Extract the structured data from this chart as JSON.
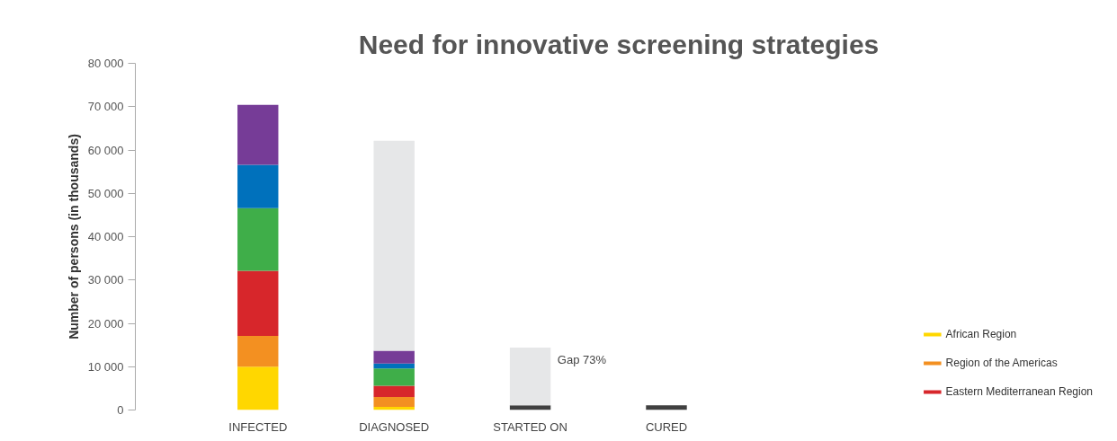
{
  "chart_data": {
    "type": "bar",
    "stacked": true,
    "title": "Need for innovative screening strategies",
    "ylabel": "Number of persons (in thousands)",
    "categories": [
      "INFECTED",
      "DIAGNOSED",
      "STARTED ON",
      "CURED"
    ],
    "series": [
      {
        "name": "African Region",
        "color": "#ffd700",
        "values": [
          10000,
          700,
          null,
          null
        ]
      },
      {
        "name": "Region of the Americas",
        "color": "#f39021",
        "values": [
          7100,
          2300,
          null,
          null
        ]
      },
      {
        "name": "Eastern Mediterranean Region",
        "color": "#d7262b",
        "values": [
          15000,
          2600,
          null,
          null
        ]
      },
      {
        "color": "#3fae49",
        "values": [
          14500,
          4000,
          null,
          null
        ]
      },
      {
        "color": "#0071bc",
        "values": [
          10000,
          1100,
          null,
          null
        ]
      },
      {
        "color": "#763c97",
        "values": [
          13800,
          3000,
          null,
          null
        ]
      },
      {
        "color": "#404040",
        "values": [
          null,
          null,
          1100,
          1100
        ]
      },
      {
        "color": "#e6e7e8",
        "values": [
          null,
          48400,
          13300,
          null
        ]
      }
    ],
    "ylim": [
      0,
      80000
    ],
    "yticks": [
      {
        "value": 0,
        "label": "0"
      },
      {
        "value": 10000,
        "label": "10 000"
      },
      {
        "value": 20000,
        "label": "20 000"
      },
      {
        "value": 30000,
        "label": "30 000"
      },
      {
        "value": 40000,
        "label": "40 000"
      },
      {
        "value": 50000,
        "label": "50 000"
      },
      {
        "value": 60000,
        "label": "60 000"
      },
      {
        "value": 70000,
        "label": "70 000"
      },
      {
        "value": 80000,
        "label": "80 000"
      }
    ],
    "annotations": [
      {
        "text": "Gap 73%",
        "x": "STARTED ON",
        "y": 14400
      }
    ],
    "grid": false,
    "legend": "bottom right"
  }
}
